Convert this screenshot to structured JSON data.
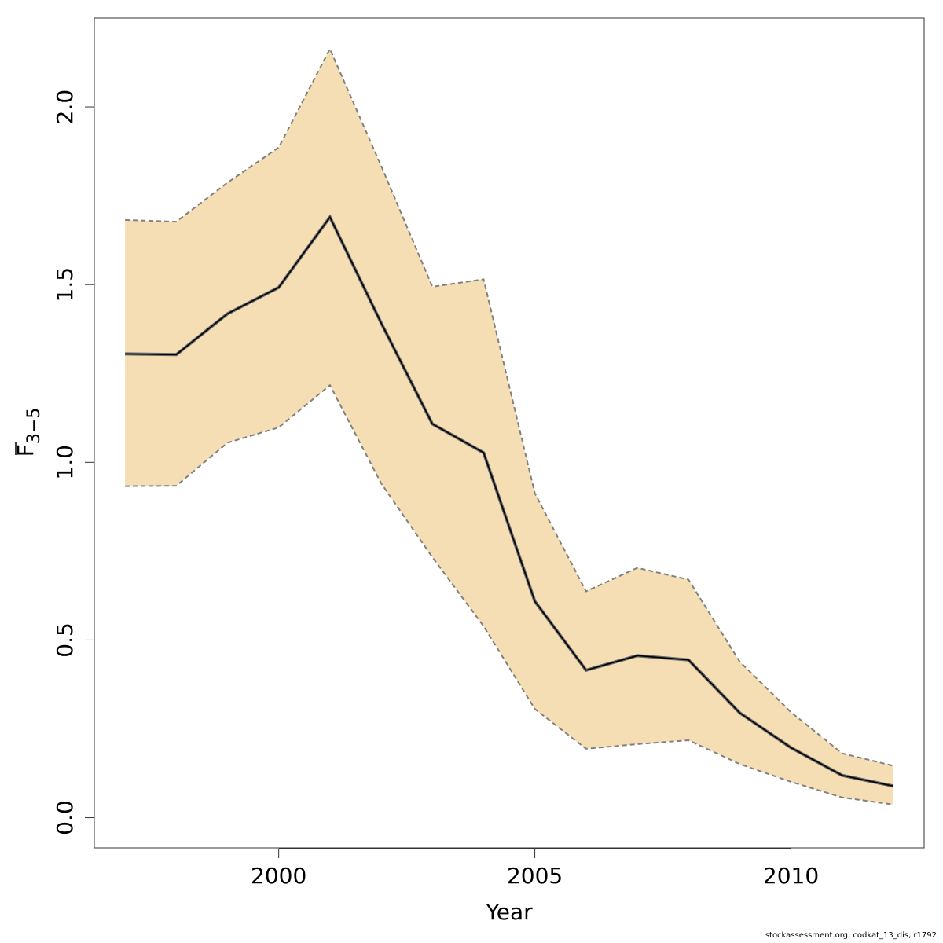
{
  "chart_data": {
    "type": "line",
    "x": [
      1997,
      1998,
      1999,
      2000,
      2001,
      2002,
      2003,
      2004,
      2005,
      2006,
      2007,
      2008,
      2009,
      2010,
      2011,
      2012
    ],
    "series": [
      {
        "role": "estimate",
        "values": [
          1.305,
          1.303,
          1.418,
          1.492,
          1.69,
          1.392,
          1.108,
          1.027,
          0.609,
          0.415,
          0.456,
          0.444,
          0.295,
          0.197,
          0.119,
          0.089
        ]
      },
      {
        "role": "upper",
        "values": [
          1.682,
          1.677,
          1.787,
          1.886,
          2.163,
          1.834,
          1.494,
          1.515,
          0.913,
          0.637,
          0.703,
          0.67,
          0.439,
          0.297,
          0.181,
          0.146
        ]
      },
      {
        "role": "lower",
        "values": [
          0.933,
          0.934,
          1.055,
          1.098,
          1.217,
          0.941,
          0.733,
          0.539,
          0.306,
          0.194,
          0.207,
          0.218,
          0.151,
          0.101,
          0.057,
          0.037
        ]
      }
    ],
    "xlabel": "Year",
    "ylabel": "F",
    "ylabel_subscript": "3−5",
    "xticks": [
      2000,
      2005,
      2010
    ],
    "yticks": [
      "0.0",
      "0.5",
      "1.0",
      "1.5",
      "2.0"
    ],
    "xlim": [
      1996.4,
      2012.6
    ],
    "ylim": [
      -0.085,
      2.25
    ],
    "band_color": "#F5DEB3",
    "band_edge_color": "#808080",
    "line_color": "#000000",
    "grid": false,
    "legend": "none"
  },
  "footer": "stockassessment.org, codkat_13_dis, r1792"
}
